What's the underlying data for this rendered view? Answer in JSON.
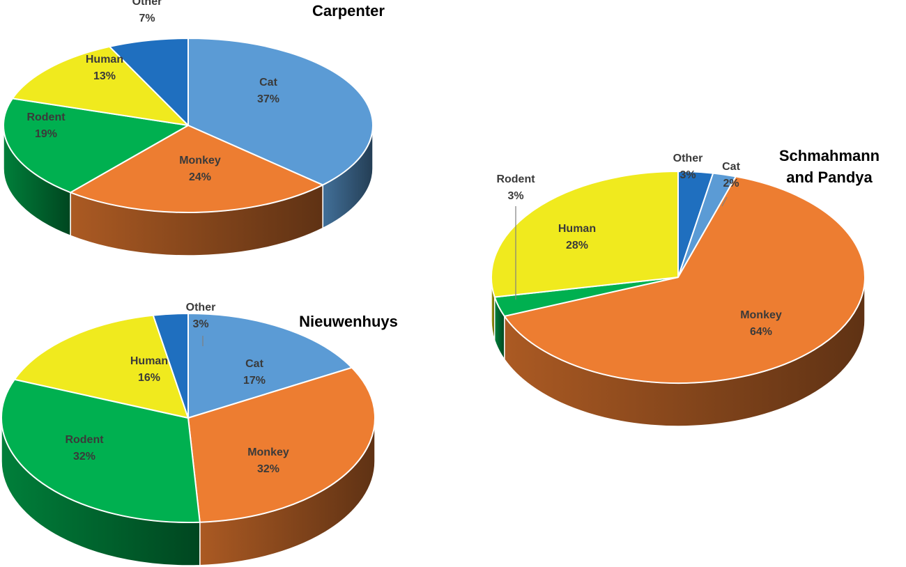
{
  "colors": {
    "Cat": "#5b9bd5",
    "Monkey": "#ed7d31",
    "Rodent": "#00b050",
    "Human": "#f0ea1e",
    "Other": "#1f6fbf"
  },
  "chart_data": [
    {
      "type": "pie",
      "title": "Carpenter",
      "slices": [
        {
          "name": "Cat",
          "value": 37,
          "label": "37%"
        },
        {
          "name": "Monkey",
          "value": 24,
          "label": "24%"
        },
        {
          "name": "Rodent",
          "value": 19,
          "label": "19%"
        },
        {
          "name": "Human",
          "value": 13,
          "label": "13%"
        },
        {
          "name": "Other",
          "value": 7,
          "label": "7%"
        }
      ]
    },
    {
      "type": "pie",
      "title": "Nieuwenhuys",
      "slices": [
        {
          "name": "Cat",
          "value": 17,
          "label": "17%"
        },
        {
          "name": "Monkey",
          "value": 32,
          "label": "32%"
        },
        {
          "name": "Rodent",
          "value": 32,
          "label": "32%"
        },
        {
          "name": "Human",
          "value": 16,
          "label": "16%"
        },
        {
          "name": "Other",
          "value": 3,
          "label": "3%"
        }
      ]
    },
    {
      "type": "pie",
      "title_lines": [
        "Schmahmann",
        "and Pandya"
      ],
      "slices": [
        {
          "name": "Cat",
          "value": 2,
          "label": "2%"
        },
        {
          "name": "Monkey",
          "value": 64,
          "label": "64%"
        },
        {
          "name": "Rodent",
          "value": 3,
          "label": "3%"
        },
        {
          "name": "Human",
          "value": 28,
          "label": "28%"
        },
        {
          "name": "Other",
          "value": 3,
          "label": "3%"
        }
      ]
    }
  ]
}
